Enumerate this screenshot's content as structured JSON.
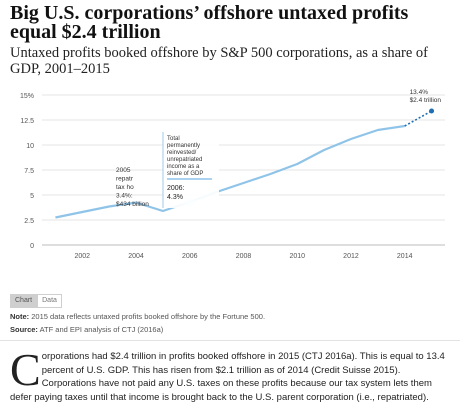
{
  "title": "Big U.S. corporations’ offshore untaxed profits equal $2.4 trillion",
  "subtitle": "Untaxed profits booked offshore by S&P 500 corporations, as a share of GDP, 2001–2015",
  "chart_data": {
    "type": "line",
    "x": [
      2001,
      2002,
      2003,
      2004,
      2005,
      2006,
      2007,
      2008,
      2009,
      2010,
      2011,
      2012,
      2013,
      2014,
      2015
    ],
    "series": [
      {
        "values": [
          2.75,
          3.3,
          3.85,
          4.25,
          3.4,
          4.3,
          5.3,
          6.2,
          7.1,
          8.1,
          9.5,
          10.6,
          11.5,
          11.9,
          13.4
        ],
        "projected_from": 2014
      }
    ],
    "xlim": [
      2000.5,
      2015.5
    ],
    "ylim": [
      0,
      15
    ],
    "y_ticks": [
      0,
      2.5,
      5,
      7.5,
      10,
      12.5,
      15
    ],
    "y_tick_labels": [
      "0",
      "2.5",
      "5",
      "7.5",
      "10",
      "12.5",
      "15%"
    ],
    "x_ticks": [
      2002,
      2004,
      2006,
      2008,
      2010,
      2012,
      2014
    ],
    "x_tick_labels": [
      "2002",
      "2004",
      "2006",
      "2008",
      "2010",
      "2012",
      "2014"
    ],
    "grid": true,
    "colors": {
      "line": "#8fc4e8",
      "projection": "#1f6fb2",
      "marker": "#1f6fb2",
      "grid": "#e6e6e6"
    },
    "annotations": {
      "end_label_1": "13.4%",
      "end_label_2": "$2.4 trillion",
      "repat_lines": [
        "2005",
        "repatr",
        "tax ho",
        "3.4%:",
        "$434 billion"
      ],
      "reinvest_lines": [
        "Total",
        "permanently",
        "reinvested/",
        "unrepatriated",
        "income as a",
        "share of GDP"
      ],
      "year_label": "2006:",
      "value_label": "4.3%"
    }
  },
  "tabs": {
    "chart": "Chart",
    "data": "Data"
  },
  "note": {
    "label": "Note:",
    "text": " 2015 data reflects untaxed profits booked offshore by the Fortune 500."
  },
  "source": {
    "label": "Source:",
    "text": " ATF and EPI analysis of CTJ (2016a)"
  },
  "paragraph": {
    "dropcap": "C",
    "text": "orporations had $2.4 trillion in profits booked offshore in 2015 (CTJ 2016a). This is equal to 13.4 percent of U.S. GDP. This has risen from $2.1 trillion as of 2014 (Credit Suisse 2015). Corporations have not paid any U.S. taxes on these profits because our tax system lets them defer paying taxes until that income is brought back to the U.S. parent corporation (i.e., repatriated)."
  }
}
